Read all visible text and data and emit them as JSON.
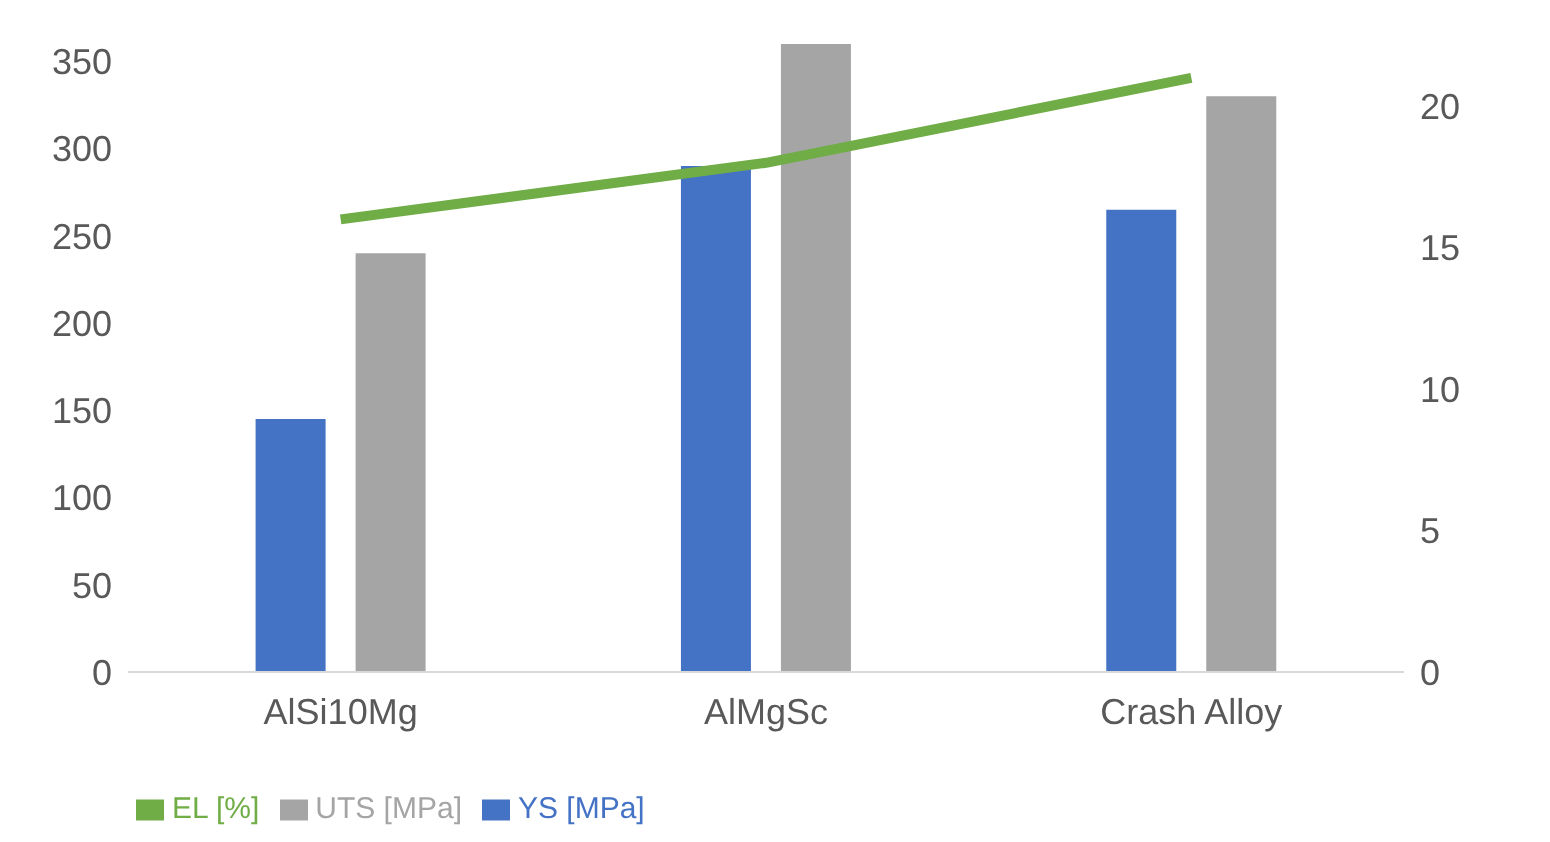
{
  "chart_data": {
    "type": "bar",
    "categories": [
      "AlSi10Mg",
      "AlMgSc",
      "Crash Alloy"
    ],
    "series": [
      {
        "name": "YS [MPa]",
        "color": "#4472c4",
        "values": [
          145,
          290,
          265
        ]
      },
      {
        "name": "UTS [MPa]",
        "color": "#a5a5a5",
        "values": [
          240,
          360,
          330
        ]
      },
      {
        "name": "EL [%]",
        "type": "line",
        "axis": "y2",
        "color": "#70ad47",
        "values": [
          16,
          18,
          21
        ]
      }
    ],
    "ylim": [
      0,
      360
    ],
    "yticks": [
      0,
      50,
      100,
      150,
      200,
      250,
      300,
      350
    ],
    "y2lim": [
      0,
      22.2
    ],
    "y2ticks": [
      0,
      5,
      10,
      15,
      20
    ],
    "grid": false,
    "legend": "bottom",
    "marker": "none"
  }
}
